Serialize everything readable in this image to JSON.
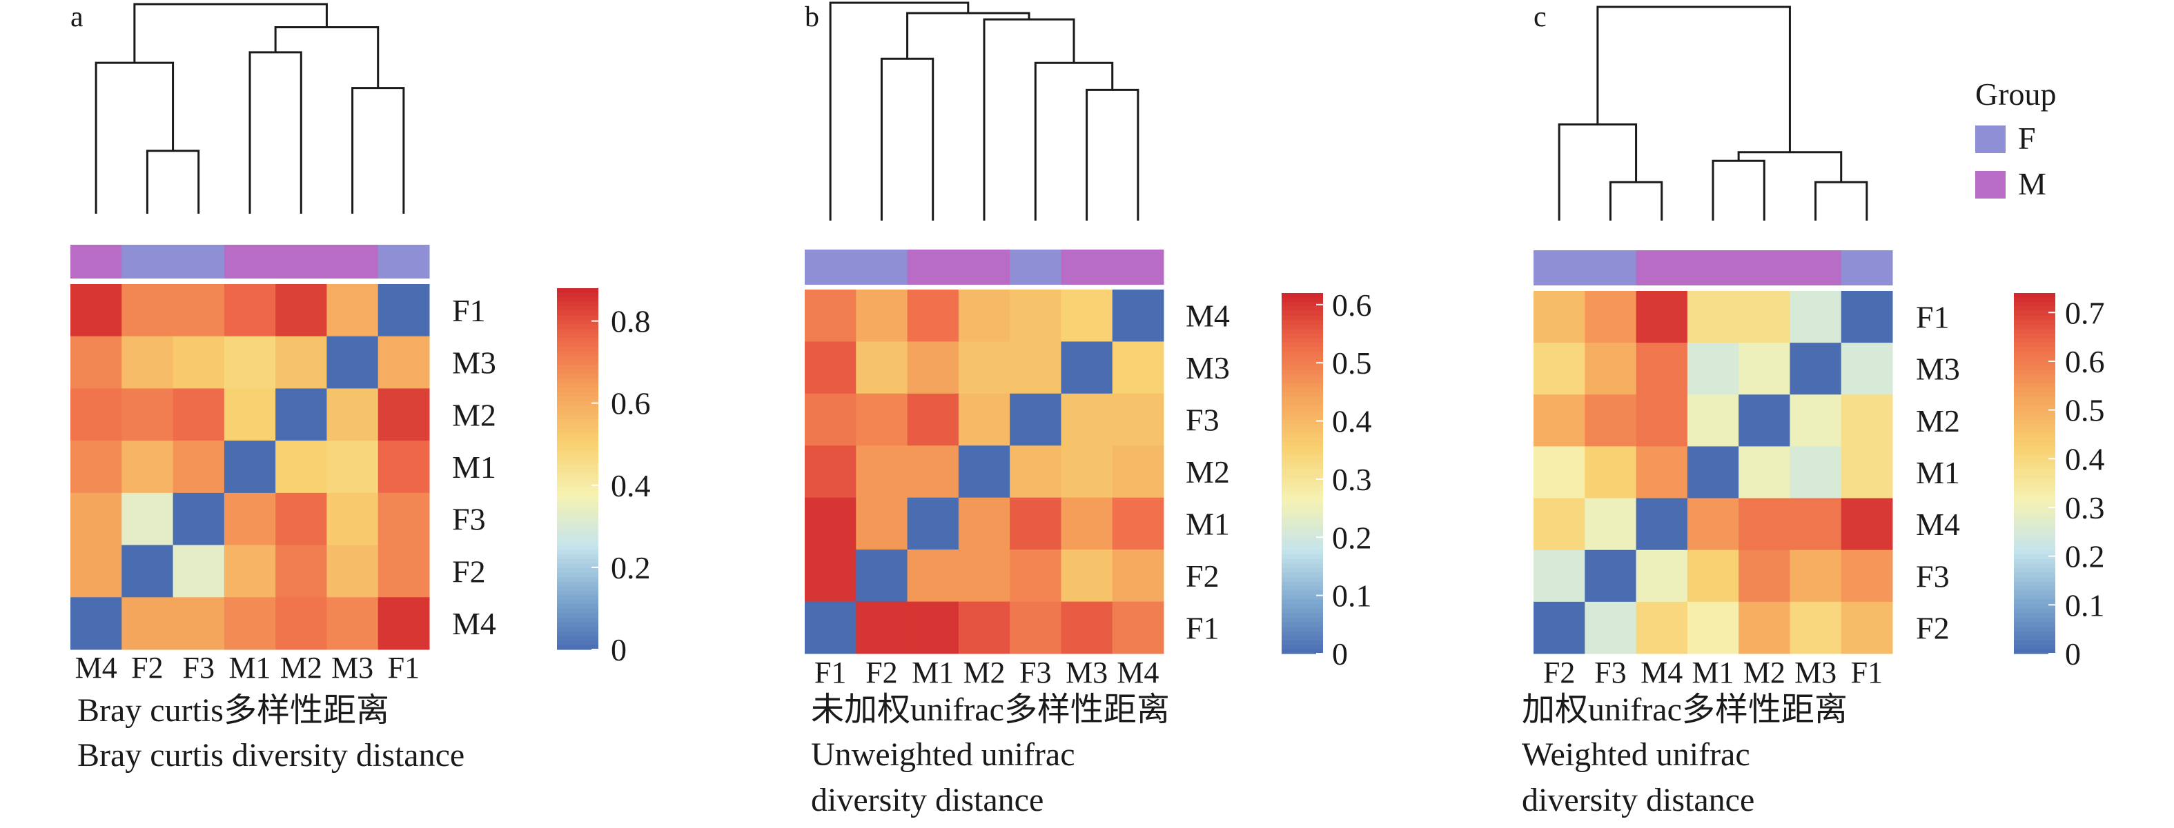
{
  "colors": {
    "F": "#8f8fd6",
    "M": "#b86cc6",
    "scale": [
      "#4a6db2",
      "#7ea8cf",
      "#c5e4ec",
      "#f6f2b2",
      "#f8d070",
      "#f5a35c",
      "#ef6a49",
      "#d0262c"
    ]
  },
  "legend": {
    "title": "Group",
    "items": [
      {
        "label": "F",
        "color": "#8f8fd6"
      },
      {
        "label": "M",
        "color": "#b86cc6"
      }
    ]
  },
  "chart_data": [
    {
      "type": "heatmap",
      "panel_label": "a",
      "caption_lines": [
        "Bray curtis多样性距离",
        "Bray curtis diversity distance"
      ],
      "columns": [
        "M4",
        "F2",
        "F3",
        "M1",
        "M2",
        "M3",
        "F1"
      ],
      "column_groups": [
        "M",
        "F",
        "F",
        "M",
        "M",
        "M",
        "F"
      ],
      "rows": [
        "F1",
        "M3",
        "M2",
        "M1",
        "F3",
        "F2",
        "M4"
      ],
      "values": [
        [
          0.85,
          0.69,
          0.69,
          0.76,
          0.83,
          0.6,
          0.0
        ],
        [
          0.69,
          0.56,
          0.52,
          0.48,
          0.54,
          0.0,
          0.6
        ],
        [
          0.73,
          0.71,
          0.75,
          0.5,
          0.0,
          0.54,
          0.83
        ],
        [
          0.68,
          0.58,
          0.66,
          0.0,
          0.5,
          0.48,
          0.76
        ],
        [
          0.62,
          0.33,
          0.0,
          0.66,
          0.75,
          0.52,
          0.69
        ],
        [
          0.62,
          0.0,
          0.33,
          0.58,
          0.71,
          0.56,
          0.69
        ],
        [
          0.0,
          0.62,
          0.62,
          0.68,
          0.73,
          0.69,
          0.85
        ]
      ],
      "colorbar": {
        "min": 0,
        "max": 0.88,
        "ticks": [
          0,
          0.2,
          0.4,
          0.6,
          0.8
        ],
        "tick_labels": [
          "0",
          "0.2",
          "0.4",
          "0.6",
          "0.8"
        ]
      },
      "dendrogram": {
        "merges": [
          [
            1,
            2,
            0.3
          ],
          [
            0,
            7,
            0.72
          ],
          [
            5,
            6,
            0.6
          ],
          [
            3,
            4,
            0.77
          ],
          [
            9,
            10,
            0.89
          ],
          [
            8,
            11,
            1.0
          ]
        ]
      }
    },
    {
      "type": "heatmap",
      "panel_label": "b",
      "caption_lines": [
        "未加权unifrac多样性距离",
        "Unweighted unifrac",
        "diversity distance"
      ],
      "columns": [
        "F1",
        "F2",
        "M1",
        "M2",
        "F3",
        "M3",
        "M4"
      ],
      "column_groups": [
        "F",
        "F",
        "M",
        "M",
        "F",
        "M",
        "M"
      ],
      "rows": [
        "M4",
        "M3",
        "F3",
        "M2",
        "M1",
        "F2",
        "F1"
      ],
      "values": [
        [
          0.5,
          0.43,
          0.52,
          0.4,
          0.38,
          0.35,
          0.0
        ],
        [
          0.55,
          0.38,
          0.44,
          0.38,
          0.38,
          0.0,
          0.35
        ],
        [
          0.51,
          0.49,
          0.55,
          0.4,
          0.0,
          0.38,
          0.38
        ],
        [
          0.56,
          0.46,
          0.46,
          0.0,
          0.4,
          0.38,
          0.4
        ],
        [
          0.6,
          0.46,
          0.0,
          0.46,
          0.55,
          0.45,
          0.52
        ],
        [
          0.6,
          0.0,
          0.46,
          0.46,
          0.49,
          0.38,
          0.43
        ],
        [
          0.0,
          0.6,
          0.6,
          0.56,
          0.51,
          0.55,
          0.5
        ]
      ],
      "colorbar": {
        "min": 0,
        "max": 0.62,
        "ticks": [
          0,
          0.1,
          0.2,
          0.3,
          0.4,
          0.5,
          0.6
        ],
        "tick_labels": [
          "0",
          "0.1",
          "0.2",
          "0.3",
          "0.4",
          "0.5",
          "0.6"
        ]
      },
      "dendrogram": {
        "merges": [
          [
            5,
            6,
            0.63
          ],
          [
            4,
            7,
            0.76
          ],
          [
            1,
            2,
            0.78
          ],
          [
            3,
            8,
            0.97
          ],
          [
            9,
            10,
            1.0
          ],
          [
            0,
            11,
            1.05
          ]
        ]
      }
    },
    {
      "type": "heatmap",
      "panel_label": "c",
      "caption_lines": [
        "加权unifrac多样性距离",
        "Weighted unifrac",
        "diversity distance"
      ],
      "columns": [
        "F2",
        "F3",
        "M4",
        "M1",
        "M2",
        "M3",
        "F1"
      ],
      "column_groups": [
        "F",
        "F",
        "M",
        "M",
        "M",
        "M",
        "F"
      ],
      "rows": [
        "F1",
        "M3",
        "M2",
        "M1",
        "M4",
        "F3",
        "F2"
      ],
      "values": [
        [
          0.47,
          0.55,
          0.71,
          0.38,
          0.38,
          0.25,
          0.0
        ],
        [
          0.4,
          0.5,
          0.61,
          0.25,
          0.3,
          0.0,
          0.25
        ],
        [
          0.5,
          0.58,
          0.61,
          0.3,
          0.0,
          0.3,
          0.38
        ],
        [
          0.33,
          0.42,
          0.55,
          0.0,
          0.3,
          0.25,
          0.38
        ],
        [
          0.4,
          0.3,
          0.0,
          0.55,
          0.61,
          0.61,
          0.71
        ],
        [
          0.25,
          0.0,
          0.3,
          0.42,
          0.58,
          0.5,
          0.55
        ],
        [
          0.0,
          0.25,
          0.4,
          0.33,
          0.5,
          0.4,
          0.47
        ]
      ],
      "colorbar": {
        "min": 0,
        "max": 0.74,
        "ticks": [
          0,
          0.1,
          0.2,
          0.3,
          0.4,
          0.5,
          0.6,
          0.7
        ],
        "tick_labels": [
          "0",
          "0.1",
          "0.2",
          "0.3",
          "0.4",
          "0.5",
          "0.6",
          "0.7"
        ]
      },
      "dendrogram": {
        "merges": [
          [
            1,
            2,
            0.18
          ],
          [
            5,
            6,
            0.18
          ],
          [
            3,
            4,
            0.28
          ],
          [
            8,
            9,
            0.32
          ],
          [
            0,
            7,
            0.45
          ],
          [
            10,
            11,
            1.0
          ]
        ]
      }
    }
  ]
}
